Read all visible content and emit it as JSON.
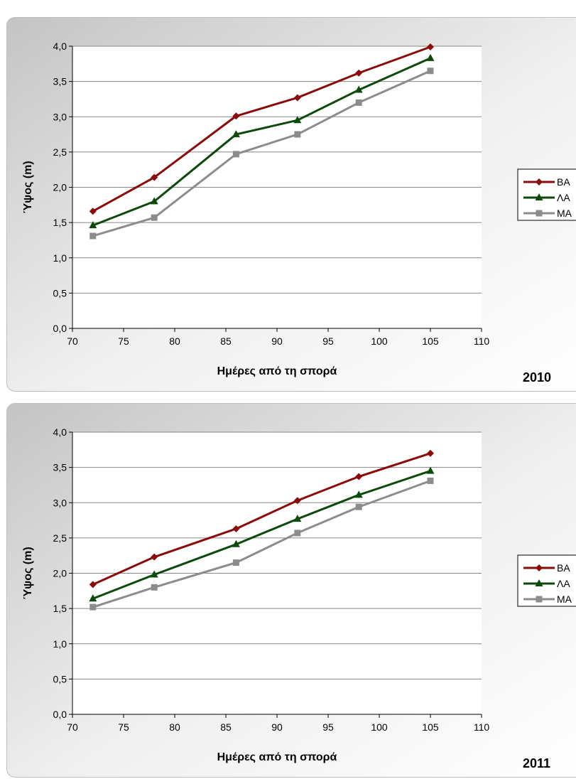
{
  "chart_data": [
    {
      "type": "line",
      "title": "",
      "corner_label": "2010",
      "xlabel": "Ημέρες από τη σπορά",
      "ylabel": "Ύψος (m)",
      "x": [
        72,
        78,
        86,
        92,
        98,
        105
      ],
      "xlim": [
        70,
        110
      ],
      "xticks": [
        70,
        75,
        80,
        85,
        90,
        95,
        100,
        105,
        110
      ],
      "xtick_labels": [
        "70",
        "75",
        "80",
        "85",
        "90",
        "95",
        "100",
        "105",
        "110"
      ],
      "ylim": [
        0,
        4
      ],
      "yticks": [
        0,
        0.5,
        1,
        1.5,
        2,
        2.5,
        3,
        3.5,
        4
      ],
      "ytick_labels": [
        "0,0",
        "0,5",
        "1,0",
        "1,5",
        "2,0",
        "2,5",
        "3,0",
        "3,5",
        "4,0"
      ],
      "grid": "horizontal",
      "legend_position": "right",
      "series": [
        {
          "name": "ΒΑ",
          "values": [
            1.66,
            2.14,
            3.01,
            3.27,
            3.62,
            3.99
          ],
          "color": "#8b0a0a",
          "marker": "diamond"
        },
        {
          "name": "ΛΑ",
          "values": [
            1.46,
            1.8,
            2.75,
            2.95,
            3.38,
            3.83
          ],
          "color": "#0b4a0b",
          "marker": "triangle"
        },
        {
          "name": "ΜΑ",
          "values": [
            1.31,
            1.57,
            2.47,
            2.75,
            3.2,
            3.65
          ],
          "color": "#8c8c8c",
          "marker": "square"
        }
      ]
    },
    {
      "type": "line",
      "title": "",
      "corner_label": "2011",
      "xlabel": "Ημέρες από τη σπορά",
      "ylabel": "Ύψος (m)",
      "x": [
        72,
        78,
        86,
        92,
        98,
        105
      ],
      "xlim": [
        70,
        110
      ],
      "xticks": [
        70,
        75,
        80,
        85,
        90,
        95,
        100,
        105,
        110
      ],
      "xtick_labels": [
        "70",
        "75",
        "80",
        "85",
        "90",
        "95",
        "100",
        "105",
        "110"
      ],
      "ylim": [
        0,
        4
      ],
      "yticks": [
        0,
        0.5,
        1,
        1.5,
        2,
        2.5,
        3,
        3.5,
        4
      ],
      "ytick_labels": [
        "0,0",
        "0,5",
        "1,0",
        "1,5",
        "2,0",
        "2,5",
        "3,0",
        "3,5",
        "4,0"
      ],
      "grid": "horizontal",
      "legend_position": "right",
      "series": [
        {
          "name": "ΒΑ",
          "values": [
            1.84,
            2.23,
            2.63,
            3.03,
            3.37,
            3.7
          ],
          "color": "#8b0a0a",
          "marker": "diamond"
        },
        {
          "name": "ΛΑ",
          "values": [
            1.64,
            1.98,
            2.41,
            2.77,
            3.11,
            3.45
          ],
          "color": "#0b4a0b",
          "marker": "triangle"
        },
        {
          "name": "ΜΑ",
          "values": [
            1.52,
            1.8,
            2.15,
            2.57,
            2.94,
            3.31
          ],
          "color": "#8c8c8c",
          "marker": "square"
        }
      ]
    }
  ]
}
